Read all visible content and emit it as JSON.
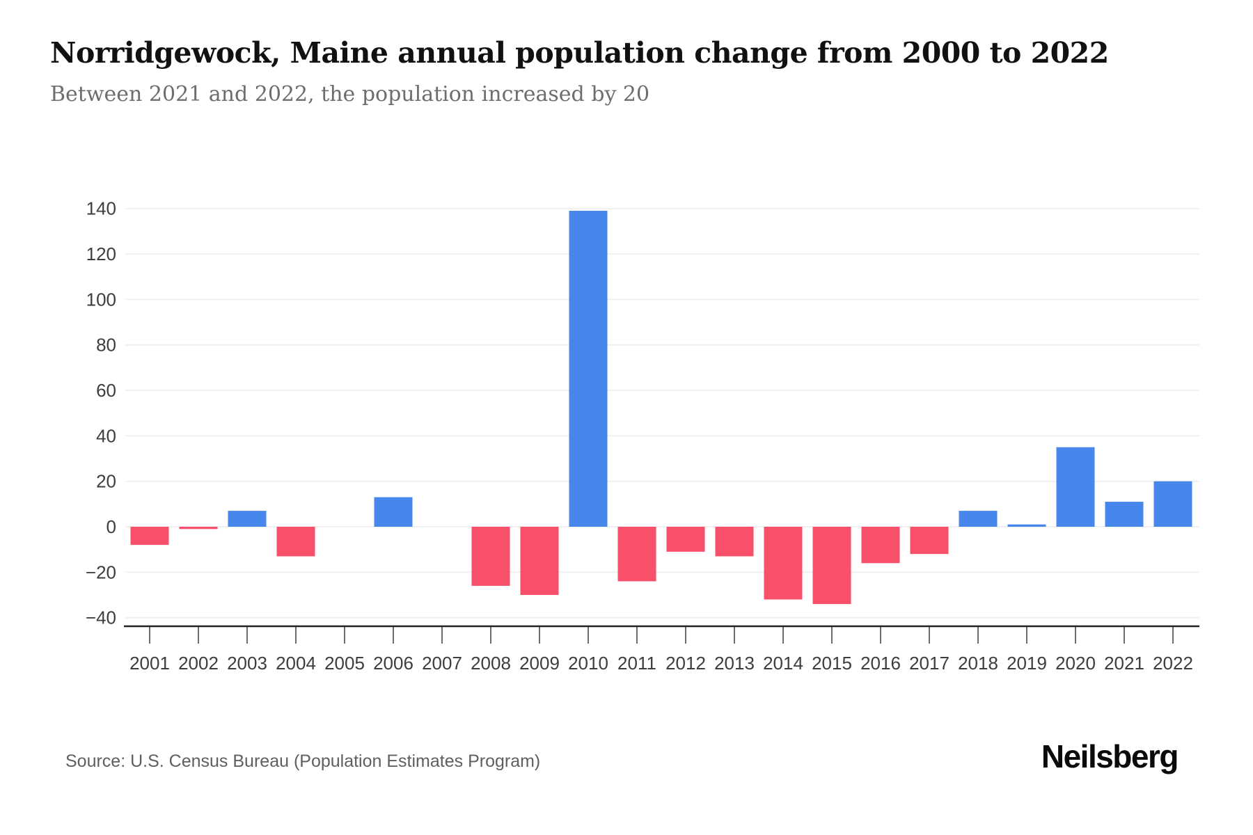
{
  "header": {
    "title": "Norridgewock, Maine annual population change from 2000 to 2022",
    "subtitle": "Between 2021 and 2022, the population increased by 20"
  },
  "footer": {
    "source": "Source: U.S. Census Bureau (Population Estimates Program)",
    "brand": "Neilsberg"
  },
  "chart_data": {
    "type": "bar",
    "title": "Norridgewock, Maine annual population change from 2000 to 2022",
    "subtitle": "Between 2021 and 2022, the population increased by 20",
    "xlabel": "",
    "ylabel": "",
    "categories": [
      "2001",
      "2002",
      "2003",
      "2004",
      "2005",
      "2006",
      "2007",
      "2008",
      "2009",
      "2010",
      "2011",
      "2012",
      "2013",
      "2014",
      "2015",
      "2016",
      "2017",
      "2018",
      "2019",
      "2020",
      "2021",
      "2022"
    ],
    "values": [
      -8,
      -1,
      7,
      -13,
      0,
      13,
      0,
      -26,
      -30,
      139,
      -24,
      -11,
      -13,
      -32,
      -34,
      -16,
      -12,
      7,
      1,
      35,
      11,
      20
    ],
    "ylim": [
      -40,
      140
    ],
    "ytick_step": 20,
    "grid": true,
    "legend_position": "none",
    "colors": {
      "positive_bar": "#4787ec",
      "negative_bar": "#f84f6b",
      "gridline": "#efefef",
      "axis_line": "#222222",
      "tick": "#3d3d3d",
      "axis_text": "#3d3d3d"
    }
  }
}
